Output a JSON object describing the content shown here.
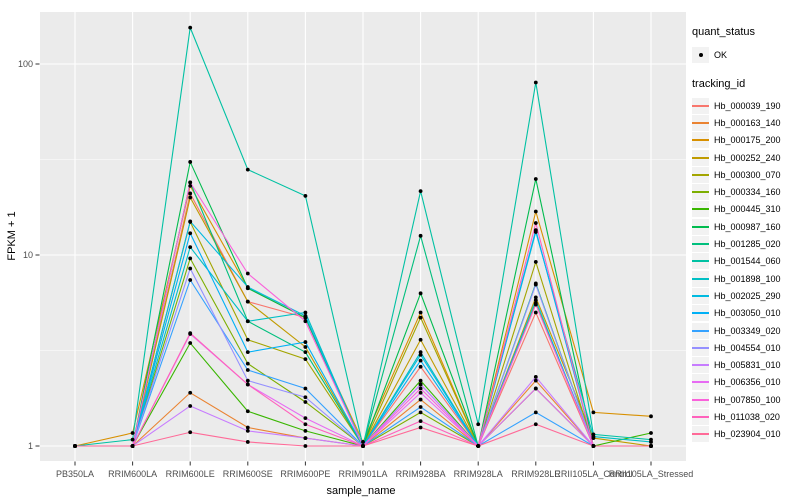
{
  "chart_data": {
    "type": "line",
    "title": "",
    "xlabel": "sample_name",
    "ylabel": "FPKM + 1",
    "y_scale": "log10",
    "ylim": [
      1,
      160
    ],
    "y_ticks": [
      1,
      10,
      100
    ],
    "grid": "on",
    "legend_position": "right",
    "panel_bg": "#EBEBEB",
    "grid_color": "#FFFFFF",
    "axis_text_color": "#4D4D4D",
    "tick_color": "#333333",
    "point_color": "#000000",
    "legend": {
      "quant_status_title": "quant_status",
      "quant_status_items": [
        "OK"
      ],
      "tracking_id_title": "tracking_id"
    },
    "categories": [
      "PB350LA",
      "RRIM600LA",
      "RRIM600LE",
      "RRIM600SE",
      "RRIM600PE",
      "RRIM901LA",
      "RRIM928BA",
      "RRIM928LA",
      "RRIM928LE",
      "RRII105LA_Control",
      "RRII105LA_Stressed"
    ],
    "series": [
      {
        "name": "Hb_000039_190",
        "color": "#F8766D",
        "values": [
          1,
          1,
          21,
          5.7,
          4.7,
          1,
          2.6,
          1,
          5.0,
          1,
          1
        ]
      },
      {
        "name": "Hb_000163_140",
        "color": "#EA8331",
        "values": [
          1,
          1,
          1.9,
          1.25,
          1.1,
          1,
          1.75,
          1,
          2.2,
          1,
          1
        ]
      },
      {
        "name": "Hb_000175_200",
        "color": "#D89000",
        "values": [
          1,
          1.17,
          23,
          6.7,
          4.7,
          1.05,
          5.0,
          1,
          16.9,
          1.5,
          1.43
        ]
      },
      {
        "name": "Hb_000252_240",
        "color": "#C09B00",
        "values": [
          1,
          1,
          20,
          5.7,
          3.3,
          1,
          3.6,
          1,
          6.0,
          1.1,
          1
        ]
      },
      {
        "name": "Hb_000300_070",
        "color": "#A3A500",
        "values": [
          1,
          1,
          14.9,
          3.6,
          2.85,
          1,
          4.7,
          1,
          9.2,
          1,
          1
        ]
      },
      {
        "name": "Hb_000334_160",
        "color": "#7CAE00",
        "values": [
          1,
          1,
          9.6,
          2.7,
          1.7,
          1,
          1.5,
          1,
          5.6,
          1,
          1
        ]
      },
      {
        "name": "Hb_000445_310",
        "color": "#39B600",
        "values": [
          1,
          1,
          3.46,
          1.52,
          1.2,
          1,
          2.2,
          1,
          2.0,
          1,
          1.17
        ]
      },
      {
        "name": "Hb_000987_160",
        "color": "#00BB4E",
        "values": [
          1,
          1,
          30.7,
          6.7,
          4.7,
          1,
          6.3,
          1,
          25,
          1,
          1
        ]
      },
      {
        "name": "Hb_001285_020",
        "color": "#00BF7D",
        "values": [
          1,
          1,
          24,
          4.5,
          3.1,
          1,
          12.6,
          1,
          7.1,
          1,
          1
        ]
      },
      {
        "name": "Hb_001544_060",
        "color": "#00C1A3",
        "values": [
          1,
          1.08,
          155,
          28,
          20.4,
          1,
          21.6,
          1.3,
          80,
          1.15,
          1.08
        ]
      },
      {
        "name": "Hb_001898_100",
        "color": "#00BFC4",
        "values": [
          1,
          1,
          11,
          4.5,
          5.0,
          1,
          3.1,
          1,
          13.2,
          1.12,
          1.05
        ]
      },
      {
        "name": "Hb_002025_290",
        "color": "#00BAE0",
        "values": [
          1,
          1,
          15,
          6.8,
          4.8,
          1,
          3.0,
          1,
          5.8,
          1,
          1
        ]
      },
      {
        "name": "Hb_003050_010",
        "color": "#00B0F6",
        "values": [
          1,
          1,
          13,
          3.1,
          3.5,
          1,
          2.8,
          1,
          13.5,
          1,
          1
        ]
      },
      {
        "name": "Hb_003349_020",
        "color": "#35A2FF",
        "values": [
          1,
          1,
          7.4,
          2.5,
          2.0,
          1,
          1.6,
          1,
          1.5,
          1,
          1
        ]
      },
      {
        "name": "Hb_004554_010",
        "color": "#9590FF",
        "values": [
          1,
          1,
          8.5,
          2.2,
          1.8,
          1,
          2.1,
          1,
          7.0,
          1,
          1
        ]
      },
      {
        "name": "Hb_005831_010",
        "color": "#C77CFF",
        "values": [
          1,
          1,
          1.62,
          1.2,
          1.1,
          1,
          2.1,
          1,
          2.3,
          1,
          1
        ]
      },
      {
        "name": "Hb_006356_010",
        "color": "#E76BF3",
        "values": [
          1,
          1,
          3.86,
          2.1,
          1.4,
          1,
          1.9,
          1,
          2.0,
          1,
          1
        ]
      },
      {
        "name": "Hb_007850_100",
        "color": "#FA62DB",
        "values": [
          1,
          1,
          24,
          8,
          4.5,
          1,
          2.0,
          1,
          5.5,
          1,
          1
        ]
      },
      {
        "name": "Hb_011038_020",
        "color": "#FF62BC",
        "values": [
          1,
          1,
          3.9,
          2.1,
          1.3,
          1,
          1.35,
          1,
          14.7,
          1,
          1
        ]
      },
      {
        "name": "Hb_023904_010",
        "color": "#FF6A98",
        "values": [
          1,
          1,
          1.18,
          1.05,
          1,
          1,
          1.25,
          1,
          1.3,
          1,
          1
        ]
      }
    ]
  }
}
